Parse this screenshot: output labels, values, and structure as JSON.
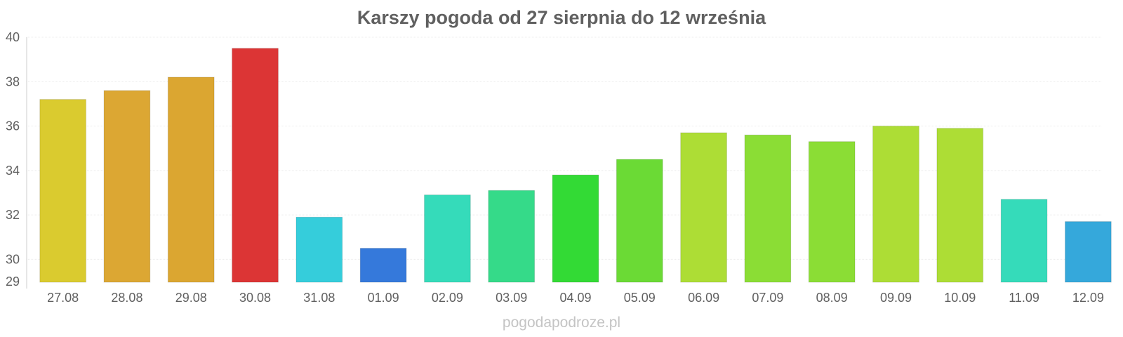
{
  "chart_data": {
    "type": "bar",
    "title": "Karszy pogoda od 27 sierpnia do 12 września",
    "categories": [
      "27.08",
      "28.08",
      "29.08",
      "30.08",
      "31.08",
      "01.09",
      "02.09",
      "03.09",
      "04.09",
      "05.09",
      "06.09",
      "07.09",
      "08.09",
      "09.09",
      "10.09",
      "11.09",
      "12.09"
    ],
    "values": [
      37.2,
      37.6,
      38.2,
      39.5,
      31.9,
      30.5,
      32.9,
      33.1,
      33.8,
      34.5,
      35.7,
      35.6,
      35.3,
      36.0,
      35.9,
      32.7,
      31.7
    ],
    "colors": [
      "#dacb2f",
      "#dca733",
      "#dba631",
      "#dc3535",
      "#35cddb",
      "#3579db",
      "#35dbba",
      "#35da89",
      "#33da35",
      "#6bda35",
      "#addd35",
      "#8bdd35",
      "#8bdd35",
      "#addd35",
      "#addd35",
      "#35dbba",
      "#35a8db"
    ],
    "ylim": [
      29,
      40
    ],
    "yticks": [
      "29",
      "30",
      "32",
      "34",
      "36",
      "38",
      "40"
    ],
    "xlabel": "",
    "ylabel": "",
    "grid": true,
    "legend": "none"
  },
  "watermark": "pogodapodroze.pl"
}
